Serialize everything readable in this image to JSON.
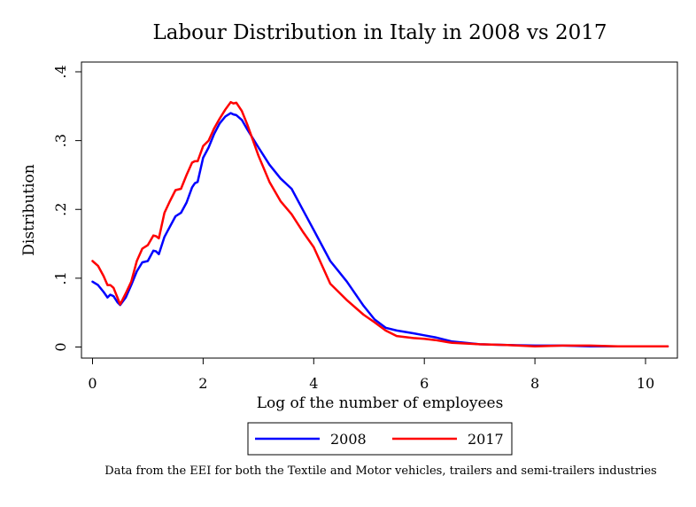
{
  "chart_data": {
    "type": "line",
    "title": "Labour Distribution in Italy in 2008 vs 2017",
    "xlabel": "Log of the number of employees",
    "ylabel": "Distribution",
    "xlim": [
      0,
      10.5
    ],
    "ylim": [
      0,
      0.4
    ],
    "xticks": [
      0,
      2,
      4,
      6,
      8,
      10
    ],
    "xtick_labels": [
      "0",
      "2",
      "4",
      "6",
      "8",
      "10"
    ],
    "yticks": [
      0,
      0.1,
      0.2,
      0.3,
      0.4
    ],
    "ytick_labels": [
      "0",
      ".1",
      ".2",
      ".3",
      ".4"
    ],
    "grid": false,
    "legend_position": "bottom-center",
    "note": "Data from the EEI for both the Textile and Motor vehicles, trailers and semi-trailers industries",
    "series": [
      {
        "name": "2008",
        "color": "#0000ff",
        "x": [
          0,
          0.1,
          0.2,
          0.27,
          0.32,
          0.38,
          0.45,
          0.5,
          0.6,
          0.7,
          0.8,
          0.9,
          1.0,
          1.1,
          1.15,
          1.2,
          1.3,
          1.4,
          1.5,
          1.6,
          1.7,
          1.8,
          1.85,
          1.9,
          2.0,
          2.1,
          2.2,
          2.3,
          2.4,
          2.5,
          2.55,
          2.6,
          2.7,
          2.8,
          3.0,
          3.2,
          3.4,
          3.6,
          3.8,
          4.0,
          4.3,
          4.6,
          4.9,
          5.1,
          5.3,
          5.5,
          5.8,
          6.0,
          6.2,
          6.5,
          7.0,
          7.5,
          8.0,
          8.5,
          9.0,
          9.5,
          10.0,
          10.4
        ],
        "y": [
          0.095,
          0.09,
          0.08,
          0.072,
          0.076,
          0.074,
          0.065,
          0.061,
          0.072,
          0.09,
          0.11,
          0.123,
          0.125,
          0.14,
          0.139,
          0.135,
          0.16,
          0.175,
          0.19,
          0.195,
          0.21,
          0.232,
          0.238,
          0.24,
          0.275,
          0.29,
          0.31,
          0.325,
          0.335,
          0.34,
          0.338,
          0.337,
          0.33,
          0.316,
          0.29,
          0.265,
          0.245,
          0.23,
          0.2,
          0.17,
          0.125,
          0.095,
          0.06,
          0.04,
          0.028,
          0.024,
          0.02,
          0.017,
          0.014,
          0.008,
          0.004,
          0.003,
          0.002,
          0.002,
          0.001,
          0.001,
          0.001,
          0.001
        ]
      },
      {
        "name": "2017",
        "color": "#ff0000",
        "x": [
          0,
          0.1,
          0.2,
          0.27,
          0.32,
          0.38,
          0.45,
          0.5,
          0.6,
          0.7,
          0.8,
          0.9,
          1.0,
          1.1,
          1.15,
          1.2,
          1.3,
          1.4,
          1.5,
          1.6,
          1.7,
          1.8,
          1.85,
          1.9,
          2.0,
          2.1,
          2.2,
          2.3,
          2.4,
          2.5,
          2.55,
          2.6,
          2.7,
          2.8,
          3.0,
          3.2,
          3.4,
          3.6,
          3.8,
          4.0,
          4.3,
          4.6,
          4.9,
          5.1,
          5.3,
          5.5,
          5.8,
          6.0,
          6.2,
          6.5,
          7.0,
          7.5,
          8.0,
          8.5,
          9.0,
          9.5,
          10.0,
          10.4
        ],
        "y": [
          0.125,
          0.118,
          0.103,
          0.09,
          0.09,
          0.086,
          0.072,
          0.062,
          0.078,
          0.095,
          0.125,
          0.143,
          0.148,
          0.162,
          0.161,
          0.158,
          0.195,
          0.212,
          0.228,
          0.23,
          0.25,
          0.268,
          0.27,
          0.27,
          0.292,
          0.3,
          0.318,
          0.332,
          0.345,
          0.356,
          0.354,
          0.355,
          0.343,
          0.323,
          0.278,
          0.24,
          0.212,
          0.193,
          0.168,
          0.145,
          0.092,
          0.068,
          0.047,
          0.036,
          0.024,
          0.016,
          0.013,
          0.012,
          0.01,
          0.006,
          0.004,
          0.003,
          0.001,
          0.002,
          0.002,
          0.001,
          0.001,
          0.001
        ]
      }
    ]
  }
}
